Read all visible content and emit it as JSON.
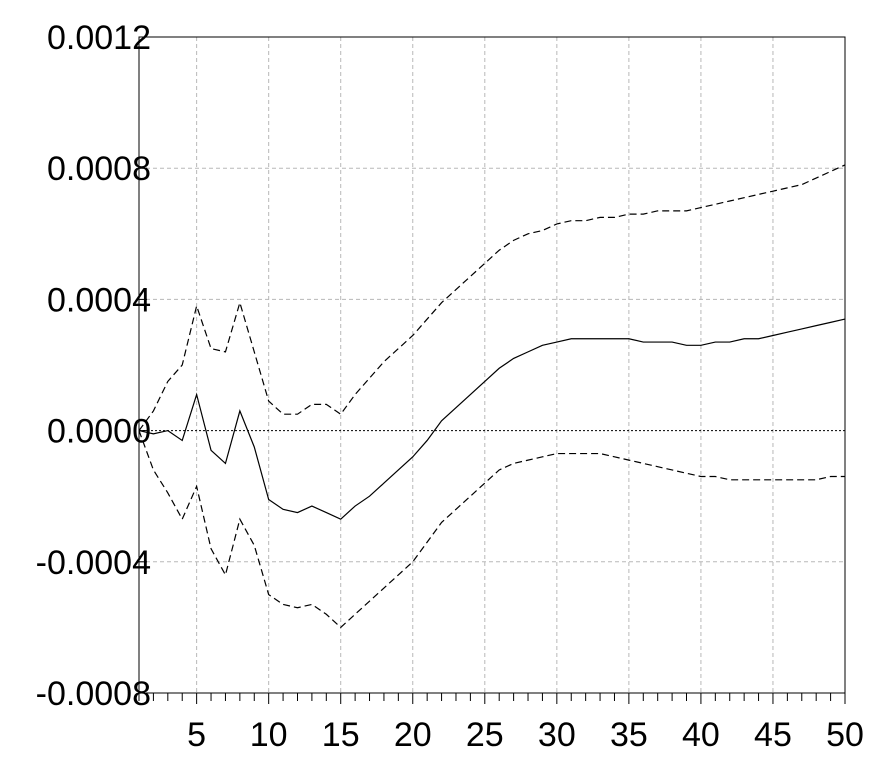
{
  "chart_data": {
    "type": "line",
    "title": "",
    "xlabel": "",
    "ylabel": "",
    "xlim": [
      1,
      50
    ],
    "ylim": [
      -0.0008,
      0.0012
    ],
    "x_ticks": [
      5,
      10,
      15,
      20,
      25,
      30,
      35,
      40,
      45,
      50
    ],
    "y_ticks": [
      -0.0008,
      -0.0004,
      0.0,
      0.0004,
      0.0008,
      0.0012
    ],
    "y_tick_labels": [
      "-0.0008",
      "-0.0004",
      "0.0000",
      "0.0004",
      "0.0008",
      "0.0012"
    ],
    "x_tick_labels": [
      "5",
      "10",
      "15",
      "20",
      "25",
      "30",
      "35",
      "40",
      "45",
      "50"
    ],
    "grid": true,
    "zero_line": true,
    "x": [
      1,
      2,
      3,
      4,
      5,
      6,
      7,
      8,
      9,
      10,
      11,
      12,
      13,
      14,
      15,
      16,
      17,
      18,
      19,
      20,
      21,
      22,
      23,
      24,
      25,
      26,
      27,
      28,
      29,
      30,
      31,
      32,
      33,
      34,
      35,
      36,
      37,
      38,
      39,
      40,
      41,
      42,
      43,
      44,
      45,
      46,
      47,
      48,
      49,
      50
    ],
    "series": [
      {
        "style": "solid",
        "values": [
          0.0,
          -1e-05,
          0.0,
          -3e-05,
          0.00011,
          -6e-05,
          -0.0001,
          6e-05,
          -5e-05,
          -0.00021,
          -0.00024,
          -0.00025,
          -0.00023,
          -0.00025,
          -0.00027,
          -0.00023,
          -0.0002,
          -0.00016,
          -0.00012,
          -8e-05,
          -3e-05,
          3e-05,
          7e-05,
          0.00011,
          0.00015,
          0.00019,
          0.00022,
          0.00024,
          0.00026,
          0.00027,
          0.00028,
          0.00028,
          0.00028,
          0.00028,
          0.00028,
          0.00027,
          0.00027,
          0.00027,
          0.00026,
          0.00026,
          0.00027,
          0.00027,
          0.00028,
          0.00028,
          0.00029,
          0.0003,
          0.00031,
          0.00032,
          0.00033,
          0.00034
        ]
      },
      {
        "style": "dashed",
        "values": [
          0.0,
          6e-05,
          0.00015,
          0.0002,
          0.00038,
          0.00025,
          0.00024,
          0.00039,
          0.00024,
          9e-05,
          5e-05,
          5e-05,
          8e-05,
          8e-05,
          5e-05,
          0.00011,
          0.00016,
          0.00021,
          0.00025,
          0.00029,
          0.00034,
          0.00039,
          0.00043,
          0.00047,
          0.00051,
          0.00055,
          0.00058,
          0.0006,
          0.00061,
          0.00063,
          0.00064,
          0.00064,
          0.00065,
          0.00065,
          0.00066,
          0.00066,
          0.00067,
          0.00067,
          0.00067,
          0.00068,
          0.00069,
          0.0007,
          0.00071,
          0.00072,
          0.00073,
          0.00074,
          0.00075,
          0.00077,
          0.00079,
          0.00081
        ]
      },
      {
        "style": "dashed",
        "values": [
          0.0,
          -0.00012,
          -0.00019,
          -0.00027,
          -0.00017,
          -0.00036,
          -0.00044,
          -0.00027,
          -0.00035,
          -0.0005,
          -0.00053,
          -0.00054,
          -0.00053,
          -0.00056,
          -0.0006,
          -0.00056,
          -0.00052,
          -0.00048,
          -0.00044,
          -0.0004,
          -0.00034,
          -0.00028,
          -0.00024,
          -0.0002,
          -0.00016,
          -0.00012,
          -0.0001,
          -9e-05,
          -8e-05,
          -7e-05,
          -7e-05,
          -7e-05,
          -7e-05,
          -8e-05,
          -9e-05,
          -0.0001,
          -0.00011,
          -0.00012,
          -0.00013,
          -0.00014,
          -0.00014,
          -0.00015,
          -0.00015,
          -0.00015,
          -0.00015,
          -0.00015,
          -0.00015,
          -0.00015,
          -0.00014,
          -0.00014
        ]
      }
    ]
  }
}
